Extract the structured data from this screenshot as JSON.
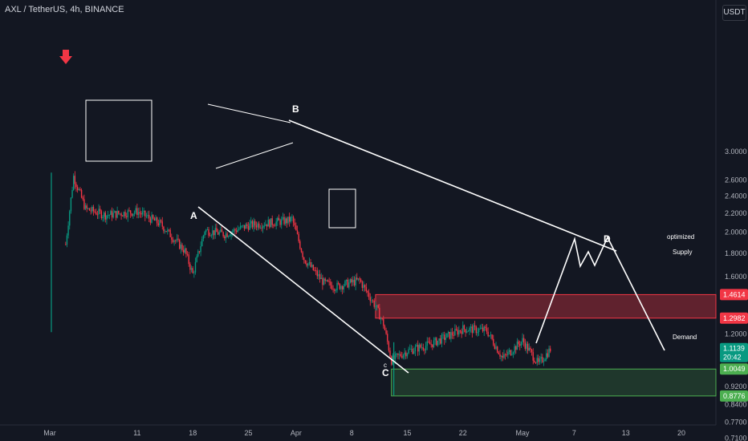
{
  "header": {
    "title": "AXL / TetherUS, 4h, BINANCE"
  },
  "currency_button": "USDT",
  "chart_data": {
    "type": "candlestick",
    "symbol": "AXL / TetherUS",
    "timeframe": "4h",
    "exchange": "BINANCE",
    "y_scale": "log",
    "ylim": [
      0.7,
      3.2
    ],
    "x_ticks": [
      "Mar",
      "11",
      "18",
      "25",
      "Apr",
      "8",
      "15",
      "22",
      "May",
      "7",
      "13",
      "20"
    ],
    "y_ticks": [
      "3.0000",
      "2.6000",
      "2.4000",
      "2.2000",
      "2.0000",
      "1.8000",
      "1.6000",
      "1.2000",
      "0.9200",
      "0.8400",
      "0.7700",
      "0.7100"
    ],
    "price_labels": [
      {
        "value": "1.4614",
        "kind": "supply-top",
        "color": "#f23645"
      },
      {
        "value": "1.2982",
        "kind": "supply-bottom",
        "color": "#f23645"
      },
      {
        "value": "1.1139",
        "sub": "20:42",
        "kind": "last-price",
        "color": "#089981"
      },
      {
        "value": "1.0049",
        "kind": "demand-top",
        "color": "#4caf50"
      },
      {
        "value": "0.8776",
        "kind": "demand-bottom",
        "color": "#4caf50"
      }
    ],
    "price_path": [
      [
        2.0,
        1.88
      ],
      [
        3,
        2.65
      ],
      [
        4.5,
        2.25
      ],
      [
        7,
        2.18
      ],
      [
        11,
        2.22
      ],
      [
        14,
        2.08
      ],
      [
        17,
        1.82
      ],
      [
        18,
        1.62
      ],
      [
        19.5,
        2.02
      ],
      [
        22,
        1.98
      ],
      [
        25,
        2.07
      ],
      [
        30,
        2.12
      ],
      [
        30.5,
        2.14
      ],
      [
        32,
        1.75
      ],
      [
        34.5,
        1.55
      ],
      [
        36,
        1.52
      ],
      [
        39,
        1.57
      ],
      [
        41,
        1.38
      ],
      [
        42,
        1.26
      ],
      [
        43,
        1.05
      ],
      [
        45,
        1.1
      ],
      [
        48,
        1.14
      ],
      [
        52,
        1.23
      ],
      [
        55,
        1.22
      ],
      [
        57,
        1.06
      ],
      [
        59.5,
        1.16
      ],
      [
        61.5,
        1.03
      ],
      [
        63,
        1.11
      ]
    ],
    "supply_zone": {
      "label": "Supply",
      "top": 1.4614,
      "bottom": 1.2982
    },
    "optimized_label": "optimized",
    "demand_zone": {
      "label": "Demand",
      "top": 1.0049,
      "bottom": 0.8776
    },
    "wave_labels": [
      "A",
      "B",
      "C",
      "D"
    ],
    "c_small": "c",
    "colors": {
      "up": "#089981",
      "down": "#f23645",
      "supply": "#f23645",
      "demand": "#4caf50",
      "lines": "#ffffff",
      "arrow": "#f23645"
    }
  }
}
